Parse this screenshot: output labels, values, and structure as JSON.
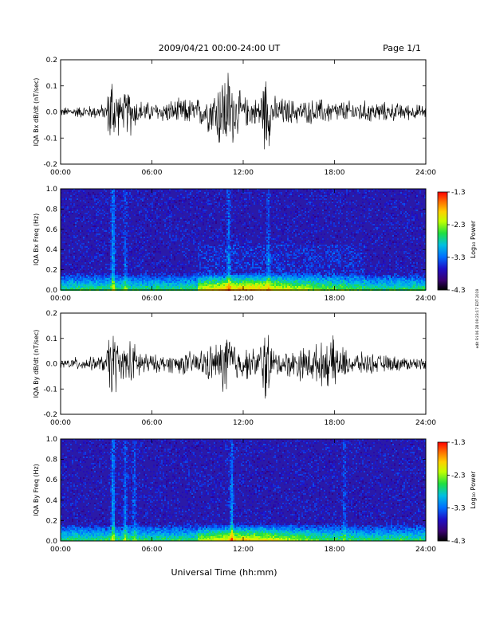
{
  "header": {
    "title": "2009/04/21  00:00-24:00 UT",
    "page": "Page 1/1"
  },
  "footer": {
    "xlabel": "Universal Time (hh:mm)"
  },
  "side_note": "edit Fri 06 28 09:23:17 EDT 2019",
  "colorbar": {
    "label": "Log₁₀ Power",
    "ticks": [
      "-1.3",
      "-2.3",
      "-3.3",
      "-4.3"
    ]
  },
  "colors": {
    "trace": "#000000",
    "spectrogram_background": "#2a1aa8",
    "colormap": [
      "#000000",
      "#3a0070",
      "#1e10c8",
      "#0070ff",
      "#00c0e0",
      "#20e040",
      "#c0ff00",
      "#ffd000",
      "#ff7000",
      "#ff0000"
    ]
  },
  "chart_data": [
    {
      "type": "line",
      "title": "",
      "ylabel": "IQA Bx dB/dt (nT/sec)",
      "xlabel": "",
      "x_ticks": [
        "00:00",
        "06:00",
        "12:00",
        "18:00",
        "24:00"
      ],
      "xlim_hours": [
        0,
        24
      ],
      "ylim": [
        -0.2,
        0.2
      ],
      "y_ticks": [
        "0.2",
        "0.1",
        "0.0",
        "-0.1",
        "-0.2"
      ],
      "series": [
        {
          "x_hours": [
            0,
            1,
            2,
            3,
            3.3,
            4,
            4.5,
            5,
            6,
            7,
            8,
            9,
            10,
            10.5,
            11,
            11.5,
            12,
            13,
            13.5,
            14,
            15,
            16,
            17,
            18,
            19,
            20,
            21,
            22,
            23,
            24
          ],
          "envelope": [
            0.02,
            0.025,
            0.03,
            0.035,
            0.2,
            0.06,
            0.12,
            0.06,
            0.04,
            0.05,
            0.06,
            0.06,
            0.1,
            0.18,
            0.2,
            0.12,
            0.07,
            0.06,
            0.2,
            0.07,
            0.06,
            0.05,
            0.06,
            0.05,
            0.05,
            0.05,
            0.045,
            0.04,
            0.035,
            0.03
          ]
        }
      ]
    },
    {
      "type": "heatmap",
      "title": "",
      "ylabel": "IQA Bx Freq (Hz)",
      "xlabel": "",
      "x_ticks": [
        "00:00",
        "06:00",
        "12:00",
        "18:00",
        "24:00"
      ],
      "xlim_hours": [
        0,
        24
      ],
      "ylim": [
        0.0,
        1.0
      ],
      "y_ticks": [
        "1.0",
        "0.8",
        "0.6",
        "0.4",
        "0.2",
        "0.0"
      ],
      "color_range_log10_power": [
        -4.3,
        -1.3
      ]
    },
    {
      "type": "line",
      "title": "",
      "ylabel": "IQA By dB/dt (nT/sec)",
      "xlabel": "",
      "x_ticks": [
        "00:00",
        "06:00",
        "12:00",
        "18:00",
        "24:00"
      ],
      "xlim_hours": [
        0,
        24
      ],
      "ylim": [
        -0.2,
        0.2
      ],
      "y_ticks": [
        "0.2",
        "0.1",
        "0.0",
        "-0.1",
        "-0.2"
      ],
      "series": [
        {
          "x_hours": [
            0,
            1,
            2,
            3,
            3.3,
            4,
            4.5,
            5,
            6,
            7,
            8,
            9,
            10,
            10.5,
            11,
            11.5,
            12,
            13,
            13.5,
            14,
            15,
            16,
            17,
            18,
            18.5,
            19,
            20,
            21,
            22,
            23,
            24
          ],
          "envelope": [
            0.02,
            0.03,
            0.03,
            0.04,
            0.2,
            0.06,
            0.12,
            0.08,
            0.04,
            0.04,
            0.05,
            0.06,
            0.09,
            0.1,
            0.2,
            0.09,
            0.07,
            0.07,
            0.2,
            0.06,
            0.06,
            0.08,
            0.09,
            0.12,
            0.08,
            0.05,
            0.05,
            0.04,
            0.035,
            0.03,
            0.025
          ]
        }
      ]
    },
    {
      "type": "heatmap",
      "title": "",
      "ylabel": "IQA By Freq (Hz)",
      "xlabel": "Universal Time (hh:mm)",
      "x_ticks": [
        "00:00",
        "06:00",
        "12:00",
        "18:00",
        "24:00"
      ],
      "xlim_hours": [
        0,
        24
      ],
      "ylim": [
        0.0,
        1.0
      ],
      "y_ticks": [
        "1.0",
        "0.8",
        "0.6",
        "0.4",
        "0.2",
        "0.0"
      ],
      "color_range_log10_power": [
        -4.3,
        -1.3
      ]
    }
  ]
}
